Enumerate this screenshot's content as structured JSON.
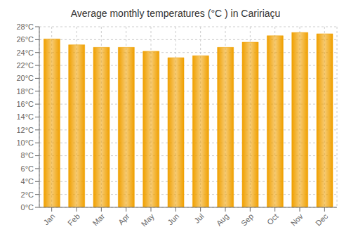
{
  "chart_data": {
    "type": "bar",
    "title": "Average monthly temperatures (°C ) in Caririaçu",
    "categories": [
      "Jan",
      "Feb",
      "Mar",
      "Apr",
      "May",
      "Jun",
      "Jul",
      "Aug",
      "Sep",
      "Oct",
      "Nov",
      "Dec"
    ],
    "values": [
      26.1,
      25.2,
      24.8,
      24.8,
      24.2,
      23.2,
      23.5,
      24.8,
      25.6,
      26.6,
      27.1,
      26.9
    ],
    "color": "#F0A000",
    "ylim": [
      0,
      28
    ],
    "yticks": [
      {
        "value": 0,
        "label": "0°C"
      },
      {
        "value": 2,
        "label": "2°C"
      },
      {
        "value": 4,
        "label": "4°C"
      },
      {
        "value": 6,
        "label": "6°C"
      },
      {
        "value": 8,
        "label": "8°C"
      },
      {
        "value": 10,
        "label": "10°C"
      },
      {
        "value": 12,
        "label": "12°C"
      },
      {
        "value": 14,
        "label": "14°C"
      },
      {
        "value": 16,
        "label": "16°C"
      },
      {
        "value": 18,
        "label": "18°C"
      },
      {
        "value": 20,
        "label": "20°C"
      },
      {
        "value": 22,
        "label": "22°C"
      },
      {
        "value": 24,
        "label": "24°C"
      },
      {
        "value": 26,
        "label": "26°C"
      },
      {
        "value": 28,
        "label": "28°C"
      }
    ],
    "grid": true
  }
}
